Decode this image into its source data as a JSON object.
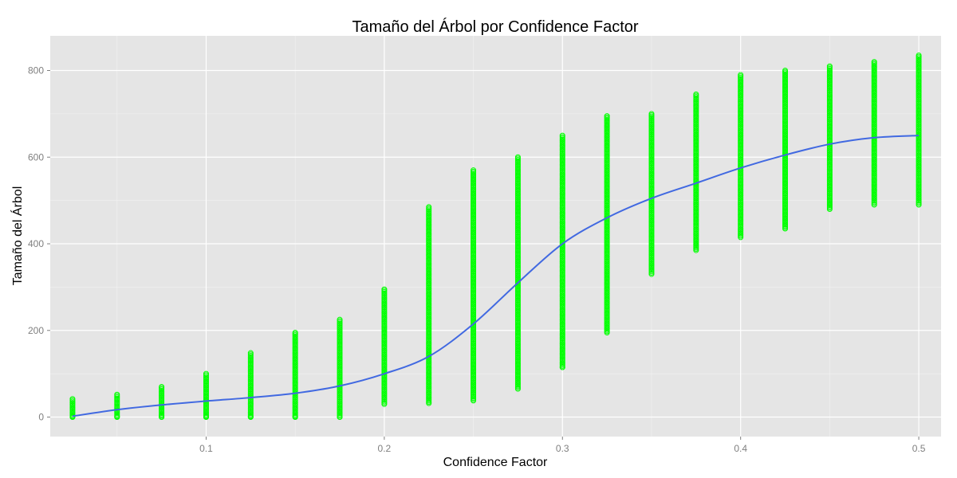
{
  "chart_data": {
    "type": "scatter",
    "title": "Tamaño del Árbol por Confidence Factor",
    "xlabel": "Confidence Factor",
    "ylabel": "Tamaño del Árbol",
    "xlim": [
      0.0125,
      0.5125
    ],
    "ylim": [
      -45,
      880
    ],
    "x_ticks": [
      0.1,
      0.2,
      0.3,
      0.4,
      0.5
    ],
    "x_tick_labels": [
      "0.1",
      "0.2",
      "0.3",
      "0.4",
      "0.5"
    ],
    "y_ticks": [
      0,
      200,
      400,
      600,
      800
    ],
    "y_tick_labels": [
      "0",
      "200",
      "400",
      "600",
      "800"
    ],
    "grid": true,
    "legend": "none",
    "colors": {
      "points": "#00ff00",
      "smooth_line": "#4169e1",
      "panel": "#e5e5e5",
      "grid": "#ffffff",
      "grid_minor": "#f2f2f2"
    },
    "point_ranges": [
      {
        "x": 0.025,
        "min": 0,
        "max": 42,
        "outliers": [
          0,
          2
        ]
      },
      {
        "x": 0.05,
        "min": 0,
        "max": 52,
        "outliers": [
          0,
          2
        ]
      },
      {
        "x": 0.075,
        "min": 0,
        "max": 70,
        "outliers": [
          0,
          3
        ]
      },
      {
        "x": 0.1,
        "min": 0,
        "max": 100,
        "outliers": [
          0,
          2
        ]
      },
      {
        "x": 0.125,
        "min": 0,
        "max": 148,
        "outliers": [
          0,
          2
        ]
      },
      {
        "x": 0.15,
        "min": 0,
        "max": 195,
        "outliers": [
          0,
          2
        ]
      },
      {
        "x": 0.175,
        "min": 0,
        "max": 225,
        "outliers": [
          0
        ]
      },
      {
        "x": 0.2,
        "min": 30,
        "max": 295,
        "outliers": []
      },
      {
        "x": 0.225,
        "min": 32,
        "max": 485,
        "outliers": []
      },
      {
        "x": 0.25,
        "min": 38,
        "max": 570,
        "outliers": []
      },
      {
        "x": 0.275,
        "min": 65,
        "max": 600,
        "outliers": []
      },
      {
        "x": 0.3,
        "min": 115,
        "max": 650,
        "outliers": [
          115
        ]
      },
      {
        "x": 0.325,
        "min": 195,
        "max": 695,
        "outliers": []
      },
      {
        "x": 0.35,
        "min": 330,
        "max": 700,
        "outliers": []
      },
      {
        "x": 0.375,
        "min": 385,
        "max": 745,
        "outliers": []
      },
      {
        "x": 0.4,
        "min": 415,
        "max": 790,
        "outliers": []
      },
      {
        "x": 0.425,
        "min": 435,
        "max": 800,
        "outliers": []
      },
      {
        "x": 0.45,
        "min": 480,
        "max": 810,
        "outliers": []
      },
      {
        "x": 0.475,
        "min": 490,
        "max": 820,
        "outliers": []
      },
      {
        "x": 0.5,
        "min": 490,
        "max": 835,
        "outliers": []
      }
    ],
    "smooth_line": [
      {
        "x": 0.025,
        "y": 2
      },
      {
        "x": 0.05,
        "y": 17
      },
      {
        "x": 0.075,
        "y": 28
      },
      {
        "x": 0.1,
        "y": 37
      },
      {
        "x": 0.125,
        "y": 45
      },
      {
        "x": 0.15,
        "y": 55
      },
      {
        "x": 0.175,
        "y": 72
      },
      {
        "x": 0.2,
        "y": 100
      },
      {
        "x": 0.225,
        "y": 140
      },
      {
        "x": 0.25,
        "y": 215
      },
      {
        "x": 0.275,
        "y": 310
      },
      {
        "x": 0.3,
        "y": 400
      },
      {
        "x": 0.325,
        "y": 460
      },
      {
        "x": 0.35,
        "y": 505
      },
      {
        "x": 0.375,
        "y": 540
      },
      {
        "x": 0.4,
        "y": 575
      },
      {
        "x": 0.425,
        "y": 605
      },
      {
        "x": 0.45,
        "y": 630
      },
      {
        "x": 0.475,
        "y": 645
      },
      {
        "x": 0.5,
        "y": 650
      }
    ]
  }
}
